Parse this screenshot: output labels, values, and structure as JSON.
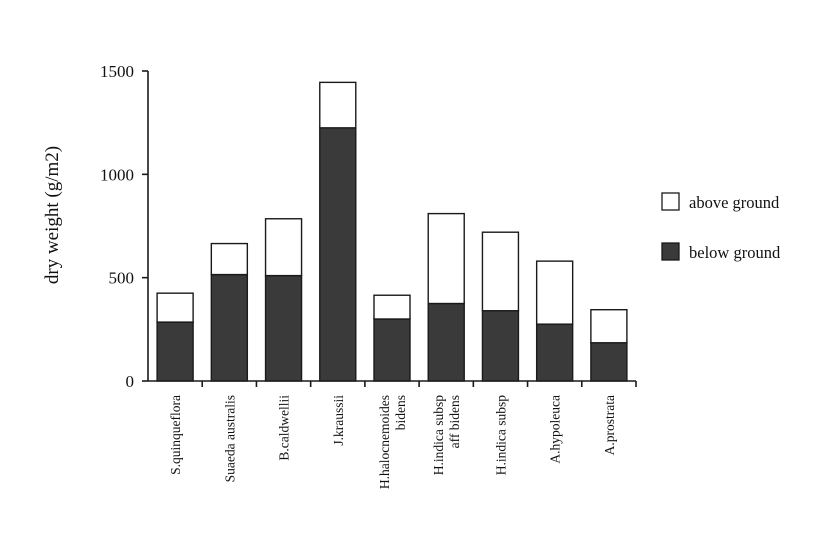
{
  "chart_data": {
    "type": "bar",
    "stacked": true,
    "ylabel": "dry weight (g/m2)",
    "xlabel": "",
    "ylim": [
      0,
      1500
    ],
    "yticks": [
      0,
      500,
      1000,
      1500
    ],
    "categories": [
      [
        "S.quinqueflora"
      ],
      [
        "Suaeda australis"
      ],
      [
        "B.caldwellii"
      ],
      [
        "J.kraussii"
      ],
      [
        "H.halocnemoides",
        "bidens"
      ],
      [
        "H.indica subsp",
        "aff bidens"
      ],
      [
        "H.indica subsp"
      ],
      [
        "A.hypoleuca"
      ],
      [
        "A.prostrata"
      ]
    ],
    "series": [
      {
        "name": "below ground",
        "color": "#3a3a3a",
        "values": [
          285,
          515,
          510,
          1225,
          300,
          375,
          340,
          275,
          185
        ]
      },
      {
        "name": "above ground",
        "color": "#ffffff",
        "values": [
          140,
          150,
          275,
          220,
          115,
          435,
          380,
          305,
          160
        ]
      }
    ],
    "legend": {
      "position": "right",
      "order": [
        "above ground",
        "below ground"
      ]
    },
    "grid": false
  }
}
